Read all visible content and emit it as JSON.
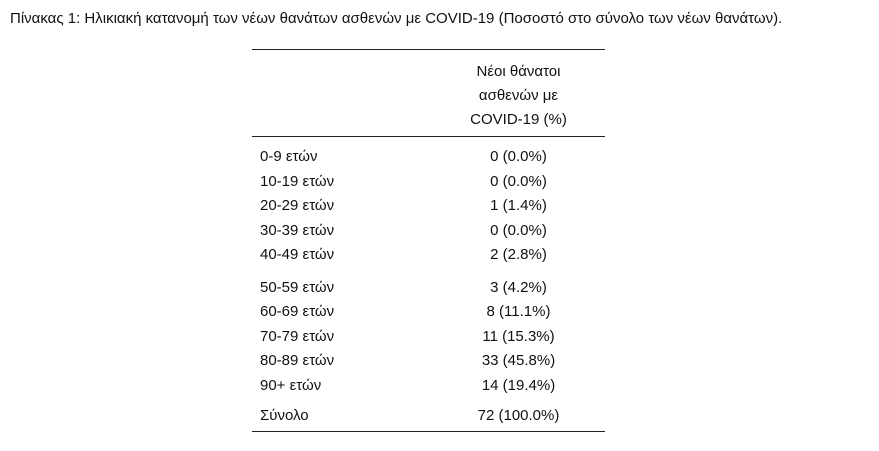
{
  "caption": "Πίνακας 1: Ηλικιακή κατανομή των νέων θανάτων ασθενών με COVID-19 (Ποσοστό στο σύνολο των νέων θανάτων).",
  "table": {
    "column_header_lines": [
      "Νέοι θάνατοι",
      "ασθενών με",
      "COVID-19 (%)"
    ],
    "group1": [
      {
        "label": "0-9 ετών",
        "value": "0 (0.0%)"
      },
      {
        "label": "10-19 ετών",
        "value": "0 (0.0%)"
      },
      {
        "label": "20-29 ετών",
        "value": "1 (1.4%)"
      },
      {
        "label": "30-39 ετών",
        "value": "0 (0.0%)"
      },
      {
        "label": "40-49 ετών",
        "value": "2 (2.8%)"
      }
    ],
    "group2": [
      {
        "label": "50-59 ετών",
        "value": "3 (4.2%)"
      },
      {
        "label": "60-69 ετών",
        "value": "8 (11.1%)"
      },
      {
        "label": "70-79 ετών",
        "value": "11 (15.3%)"
      },
      {
        "label": "80-89 ετών",
        "value": "33 (45.8%)"
      },
      {
        "label": "90+ ετών",
        "value": "14 (19.4%)"
      }
    ],
    "total": {
      "label": "Σύνολο",
      "value": "72 (100.0%)"
    }
  }
}
